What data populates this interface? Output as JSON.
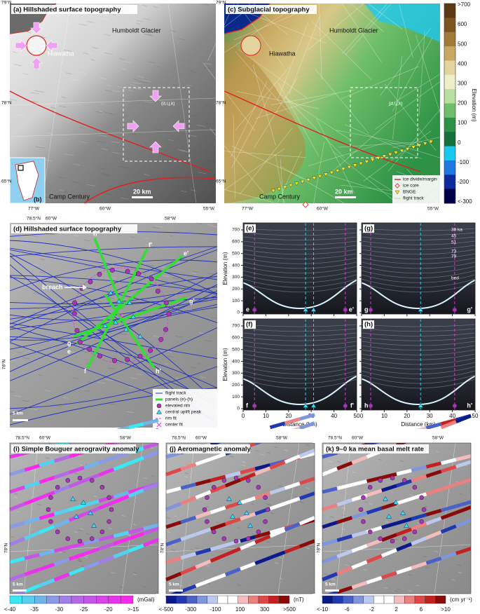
{
  "a": {
    "title": "(a) Hillshaded surface topography",
    "lat_top": "79°N",
    "lat_mid": "78°N",
    "lat_low": "65°N",
    "lon_left": "77°W",
    "lon_mid": "60°W",
    "lon_right": "55°W",
    "glacier": "Humboldt Glacier",
    "crater": "Hiawatha",
    "box": "(d,i,j,k)",
    "scale": "20 km",
    "site": "Camp Century",
    "inset": "(b)"
  },
  "c": {
    "title": "(c) Subglacial topography",
    "lat_top": "79°N",
    "lat_mid": "78°N",
    "lat_low": "65°N",
    "lon_left": "77°W",
    "lon_mid": "60°W",
    "lon_right": "55°W",
    "glacier": "Humboldt Glacier",
    "crater": "Hiawatha",
    "box": "(d,i,j,k)",
    "scale": "20 km",
    "site": "Camp Century",
    "legend": [
      "ice divide/margin",
      "ice core",
      "BNGE",
      "flight track"
    ],
    "colorbar": {
      "label": "Elevation (m)",
      "ticks": [
        ">700",
        600,
        500,
        400,
        300,
        200,
        100,
        0,
        -100,
        -200,
        "<-300"
      ],
      "colors": [
        "#5b3a12",
        "#7e5520",
        "#a27a38",
        "#c9a862",
        "#e2d49c",
        "#eeeec8",
        "#b8dea0",
        "#6fbf6a",
        "#2e9246",
        "#16703a",
        "#18c8f0",
        "#1e78e0",
        "#0c2a9a",
        "#000048"
      ]
    }
  },
  "d": {
    "title": "(d) Hillshaded surface topography",
    "lat_top": "78.5°N",
    "lon_left": "60°W",
    "lon_right": "58°W",
    "lat_mid": "78°N",
    "ends": [
      "h",
      "f'",
      "e'",
      "g'",
      "g",
      "e",
      "f",
      "h'"
    ],
    "breach": "breach",
    "scale": "5 km",
    "legend": [
      "flight track",
      "panels (e)-(h)",
      "elevated rim",
      "central uplift peak",
      "rim fit",
      "center fit"
    ]
  },
  "radar": {
    "ylabel": "Elevation (m)",
    "xlabel": "Distance (km)",
    "yticks": [
      0,
      100,
      200,
      300,
      400,
      500,
      600,
      700
    ],
    "xticks": [
      0,
      10,
      20,
      30,
      40,
      50
    ],
    "ages": [
      "38 ka",
      "45",
      "51",
      "73",
      "79",
      "bed"
    ],
    "panels": [
      {
        "id": "(e)",
        "ends": [
          "e",
          "e'"
        ]
      },
      {
        "id": "(g)",
        "ends": [
          "g",
          "g'"
        ]
      },
      {
        "id": "(f)",
        "ends": [
          "f",
          "f'"
        ]
      },
      {
        "id": "(h)",
        "ends": [
          "h",
          "h'"
        ]
      }
    ]
  },
  "maps": [
    {
      "title": "(i) Simple Bouguer aerogravity anomaly",
      "lat_top": "78.5°N",
      "lon_left": "60°W",
      "lon_right": "58°W",
      "lat_mid": "78°N",
      "scale": "5 km",
      "colorbar": {
        "unit": "(mGal)",
        "ticks": [
          "<-40",
          -35,
          -30,
          -25,
          -20,
          ">-15"
        ],
        "colors": [
          "#3ae8f4",
          "#56cff0",
          "#70b4ec",
          "#8a9ae8",
          "#a080e6",
          "#b46ae6",
          "#c656e8",
          "#d844ea",
          "#ea34ec",
          "#fb28ee"
        ]
      }
    },
    {
      "title": "(j) Aeromagnetic anomaly",
      "lat_top": "78.5°N",
      "lon_left": "60°W",
      "lon_right": "58°W",
      "lat_mid": "78°N",
      "scale": "5 km",
      "colorbar": {
        "unit": "(nT)",
        "ticks": [
          "<-500",
          -300,
          -100,
          100,
          300,
          ">500"
        ],
        "colors": [
          "#0a1a8a",
          "#2038b0",
          "#4a62c8",
          "#8096dc",
          "#bcc8ee",
          "#ffffff",
          "#ffffff",
          "#f4bcbc",
          "#ec8080",
          "#e04848",
          "#c42020",
          "#8a0a0a"
        ]
      }
    },
    {
      "title": "(k) 9–0 ka mean basal melt rate",
      "lat_top": "78.5°N",
      "lon_left": "60°W",
      "lon_right": "58°W",
      "lat_mid": "78°N",
      "scale": "5 km",
      "colorbar": {
        "unit": "(cm yr⁻¹)",
        "ticks": [
          "<-10",
          -6,
          -2,
          2,
          6,
          ">10"
        ],
        "colors": [
          "#0a1a8a",
          "#2038b0",
          "#4a62c8",
          "#8096dc",
          "#bcc8ee",
          "#ffffff",
          "#ffffff",
          "#f4bcbc",
          "#ec8080",
          "#e04848",
          "#c42020",
          "#8a0a0a"
        ]
      }
    }
  ]
}
